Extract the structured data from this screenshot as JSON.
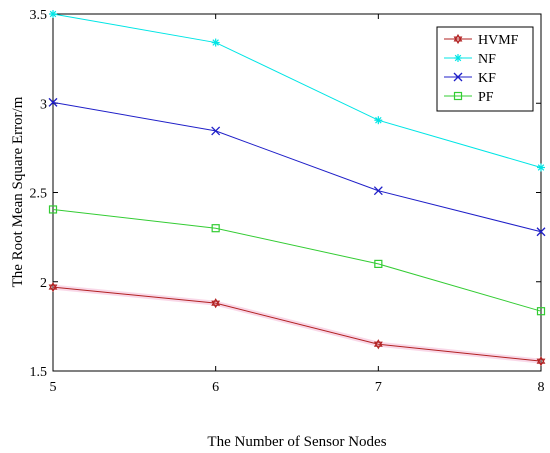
{
  "chart_data": {
    "type": "line",
    "title": "",
    "xlabel": "The Number of Sensor Nodes",
    "ylabel": "The Root Mean Square Error/m",
    "x": [
      5,
      6,
      7,
      8
    ],
    "xlim": [
      5,
      8
    ],
    "ylim": [
      1.5,
      3.5
    ],
    "xticks": [
      "5",
      "6",
      "7",
      "8"
    ],
    "yticks": [
      "1.5",
      "2",
      "2.5",
      "3",
      "3.5"
    ],
    "grid": false,
    "legend_position": "top-right",
    "series": [
      {
        "name": "HVMF",
        "values": [
          1.97,
          1.88,
          1.65,
          1.555
        ],
        "color": "#b22222",
        "marker": "hexagram"
      },
      {
        "name": "NF",
        "values": [
          3.5,
          3.34,
          2.905,
          2.64
        ],
        "color": "#00e5e5",
        "marker": "asterisk"
      },
      {
        "name": "KF",
        "values": [
          3.005,
          2.845,
          2.51,
          2.28
        ],
        "color": "#1f1fc8",
        "marker": "x"
      },
      {
        "name": "PF",
        "values": [
          2.405,
          2.3,
          2.1,
          1.835
        ],
        "color": "#33cc33",
        "marker": "square"
      }
    ]
  }
}
